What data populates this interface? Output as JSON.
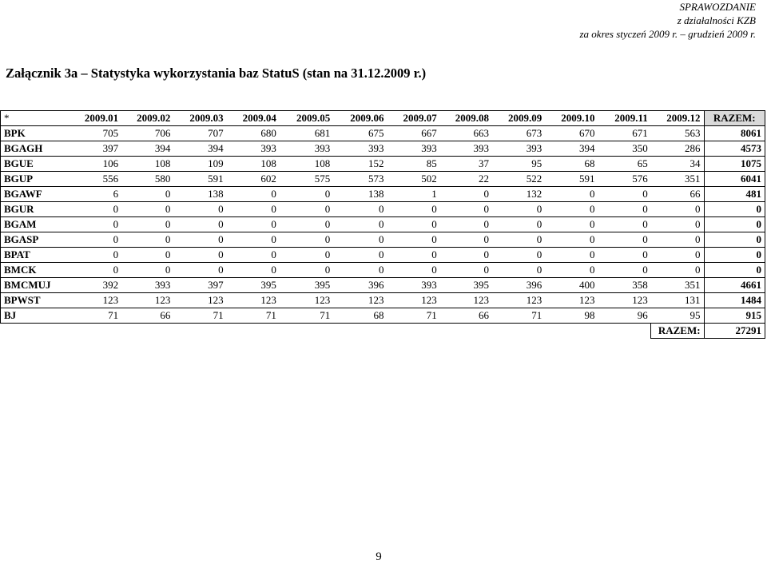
{
  "header": {
    "line1": "SPRAWOZDANIE",
    "line2": "z działalności KZB",
    "line3": "za okres styczeń 2009 r. – grudzień 2009 r."
  },
  "title": "Załącznik 3a – Statystyka wykorzystania baz StatuS (stan na 31.12.2009 r.)",
  "table": {
    "corner": "*",
    "columns": [
      "2009.01",
      "2009.02",
      "2009.03",
      "2009.04",
      "2009.05",
      "2009.06",
      "2009.07",
      "2009.08",
      "2009.09",
      "2009.10",
      "2009.11",
      "2009.12"
    ],
    "total_header": "RAZEM:",
    "rows": [
      {
        "name": "BPK",
        "values": [
          "705",
          "706",
          "707",
          "680",
          "681",
          "675",
          "667",
          "663",
          "673",
          "670",
          "671",
          "563"
        ],
        "total": "8061"
      },
      {
        "name": "BGAGH",
        "values": [
          "397",
          "394",
          "394",
          "393",
          "393",
          "393",
          "393",
          "393",
          "393",
          "394",
          "350",
          "286"
        ],
        "total": "4573"
      },
      {
        "name": "BGUE",
        "values": [
          "106",
          "108",
          "109",
          "108",
          "108",
          "152",
          "85",
          "37",
          "95",
          "68",
          "65",
          "34"
        ],
        "total": "1075"
      },
      {
        "name": "BGUP",
        "values": [
          "556",
          "580",
          "591",
          "602",
          "575",
          "573",
          "502",
          "22",
          "522",
          "591",
          "576",
          "351"
        ],
        "total": "6041"
      },
      {
        "name": "BGAWF",
        "values": [
          "6",
          "0",
          "138",
          "0",
          "0",
          "138",
          "1",
          "0",
          "132",
          "0",
          "0",
          "66"
        ],
        "total": "481"
      },
      {
        "name": "BGUR",
        "values": [
          "0",
          "0",
          "0",
          "0",
          "0",
          "0",
          "0",
          "0",
          "0",
          "0",
          "0",
          "0"
        ],
        "total": "0"
      },
      {
        "name": "BGAM",
        "values": [
          "0",
          "0",
          "0",
          "0",
          "0",
          "0",
          "0",
          "0",
          "0",
          "0",
          "0",
          "0"
        ],
        "total": "0"
      },
      {
        "name": "BGASP",
        "values": [
          "0",
          "0",
          "0",
          "0",
          "0",
          "0",
          "0",
          "0",
          "0",
          "0",
          "0",
          "0"
        ],
        "total": "0"
      },
      {
        "name": "BPAT",
        "values": [
          "0",
          "0",
          "0",
          "0",
          "0",
          "0",
          "0",
          "0",
          "0",
          "0",
          "0",
          "0"
        ],
        "total": "0"
      },
      {
        "name": "BMCK",
        "values": [
          "0",
          "0",
          "0",
          "0",
          "0",
          "0",
          "0",
          "0",
          "0",
          "0",
          "0",
          "0"
        ],
        "total": "0"
      },
      {
        "name": "BMCMUJ",
        "values": [
          "392",
          "393",
          "397",
          "395",
          "395",
          "396",
          "393",
          "395",
          "396",
          "400",
          "358",
          "351"
        ],
        "total": "4661"
      },
      {
        "name": "BPWST",
        "values": [
          "123",
          "123",
          "123",
          "123",
          "123",
          "123",
          "123",
          "123",
          "123",
          "123",
          "123",
          "131"
        ],
        "total": "1484"
      },
      {
        "name": "BJ",
        "values": [
          "71",
          "66",
          "71",
          "71",
          "71",
          "68",
          "71",
          "66",
          "71",
          "98",
          "96",
          "95"
        ],
        "total": "915"
      }
    ],
    "grand_total_label": "RAZEM:",
    "grand_total_value": "27291"
  },
  "page_number": "9"
}
